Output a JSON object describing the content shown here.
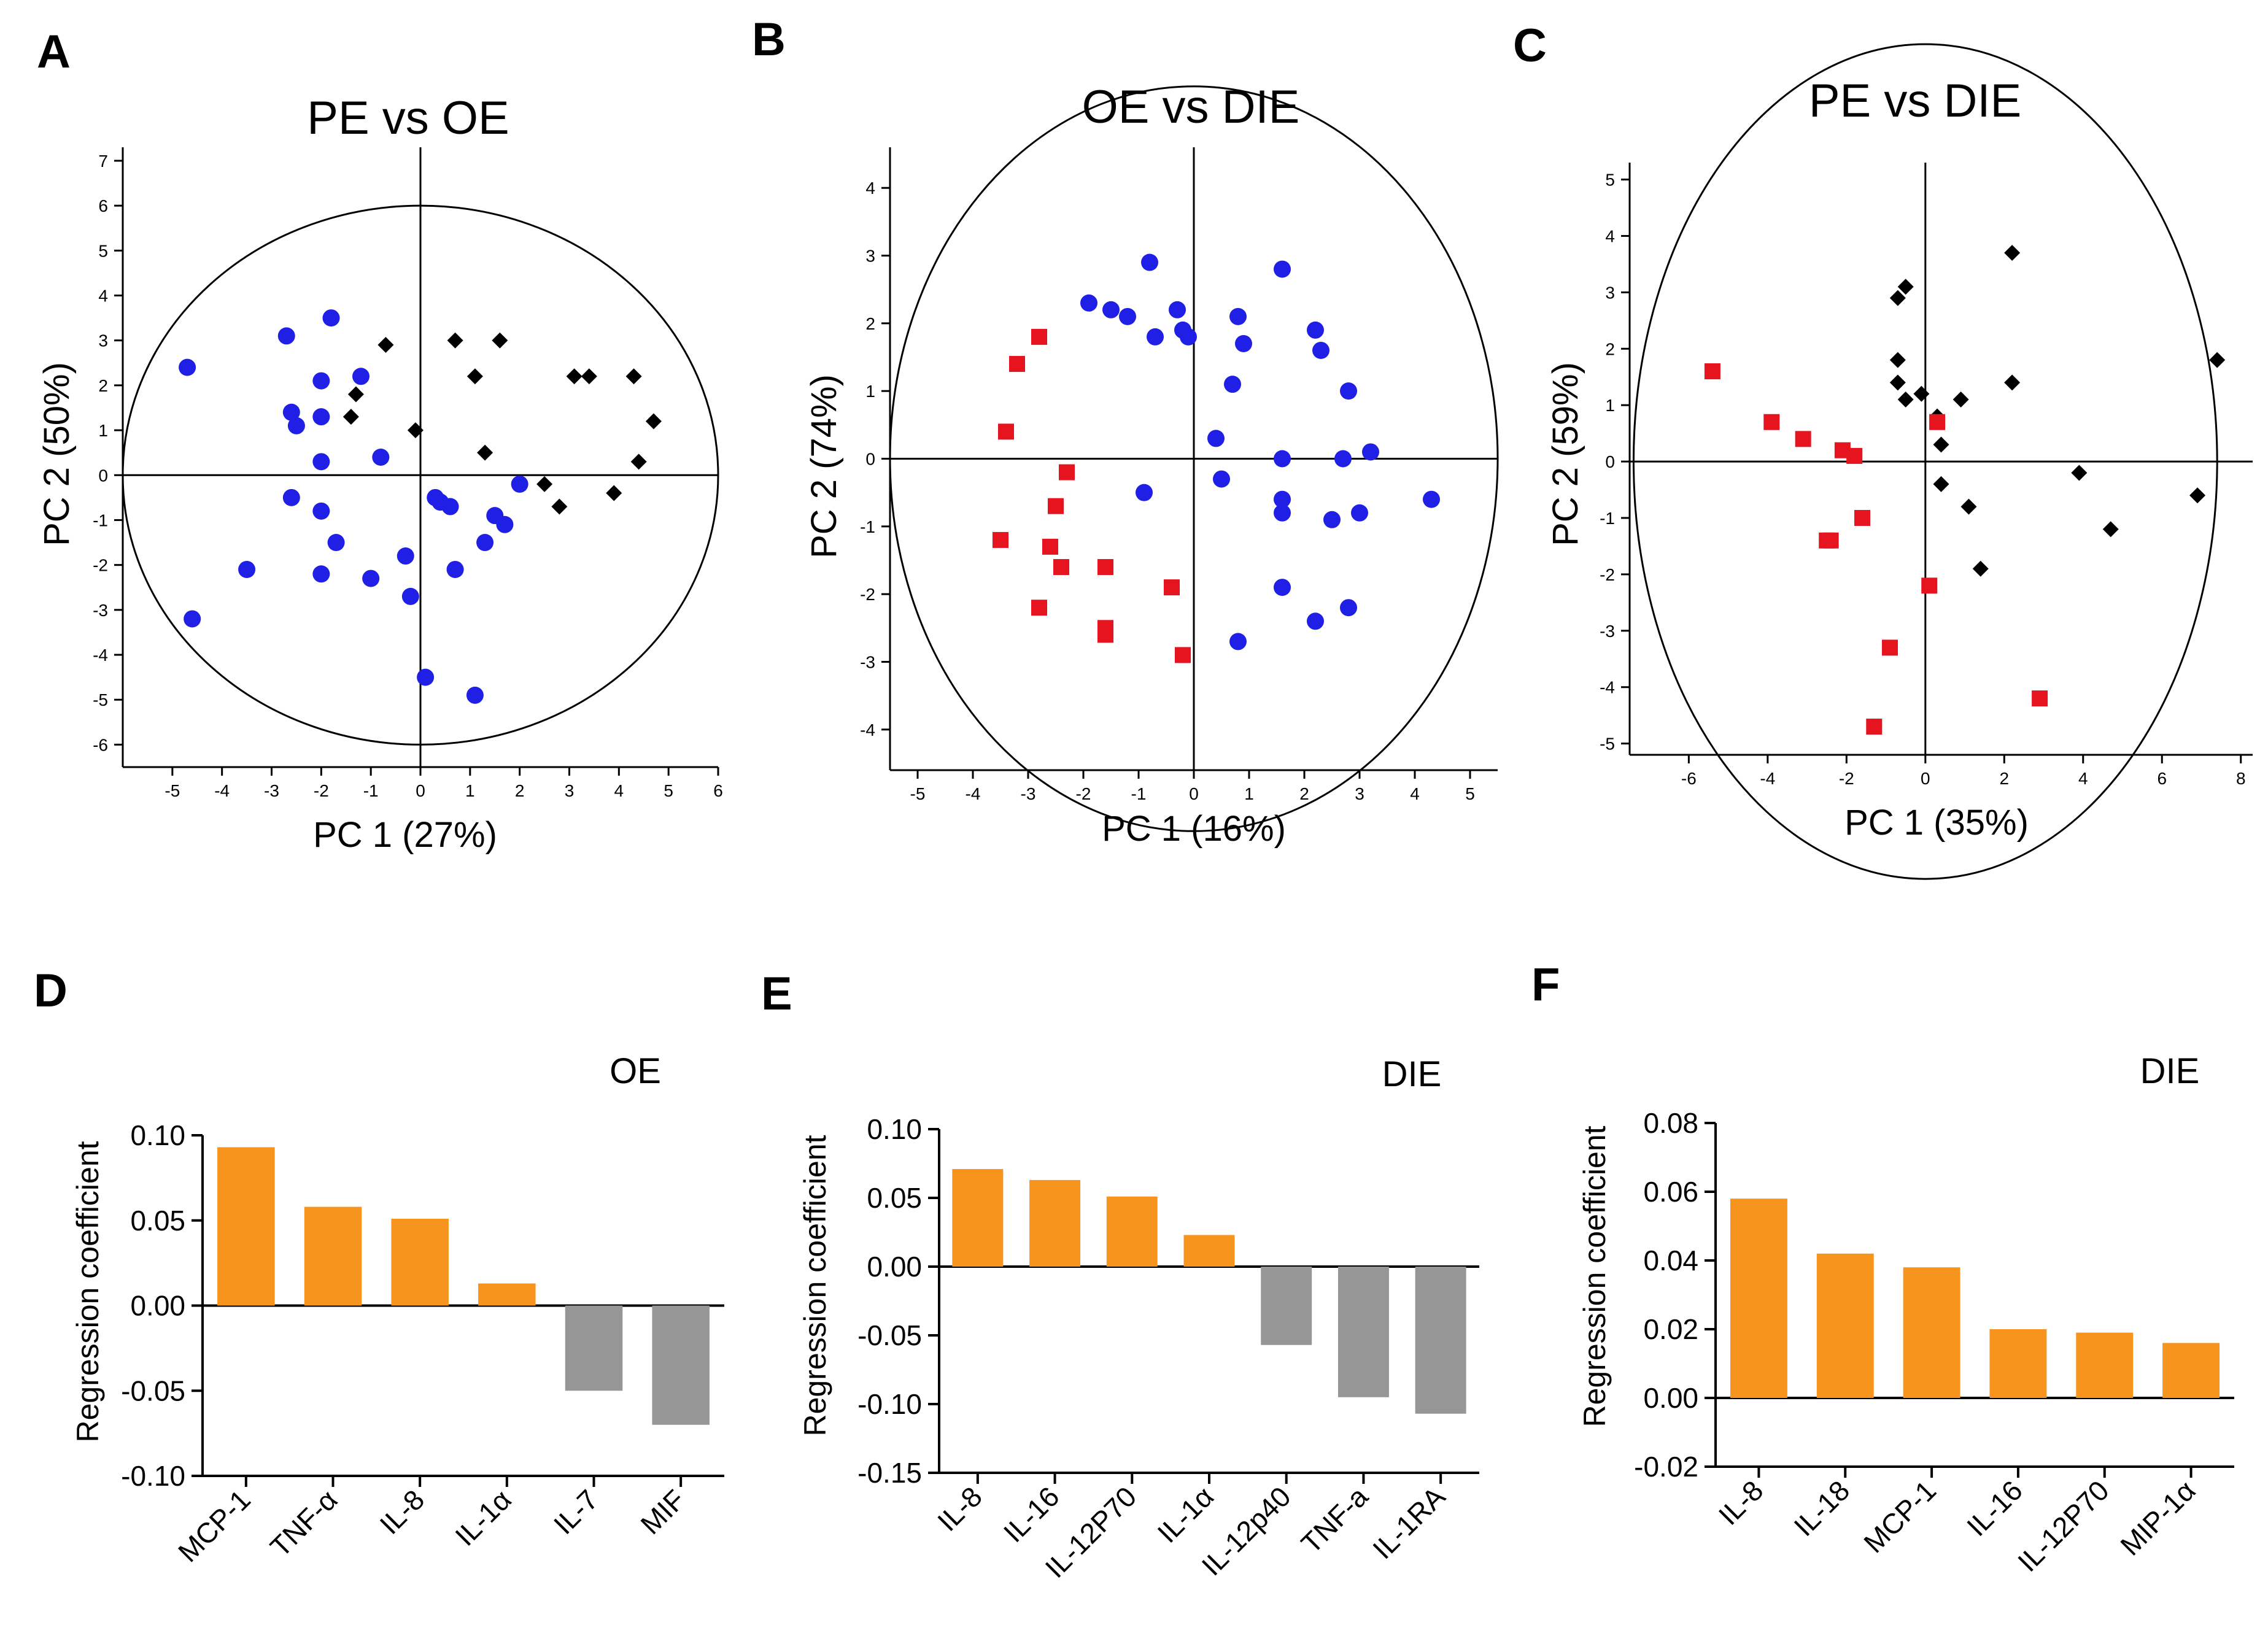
{
  "chart_data": [
    {
      "panel": "A",
      "type": "scatter",
      "title": "PE vs OE",
      "xlabel": "PC 1 (27%)",
      "ylabel": "PC 2 (50%)",
      "xlim": [
        -6,
        6
      ],
      "ylim": [
        -6.5,
        7.3
      ],
      "xticks": [
        -5,
        -4,
        -3,
        -2,
        -1,
        0,
        1,
        2,
        3,
        4,
        5,
        6
      ],
      "yticks": [
        -6,
        -5,
        -4,
        -3,
        -2,
        -1,
        0,
        1,
        2,
        3,
        4,
        5,
        6,
        7
      ],
      "circle": {
        "center": [
          0,
          0
        ],
        "radius": 6
      },
      "series": [
        {
          "marker": "circle",
          "color": "#1f1fe6",
          "points": [
            [
              -4.7,
              2.4
            ],
            [
              -4.6,
              -3.2
            ],
            [
              -3.5,
              -2.1
            ],
            [
              -2.7,
              3.1
            ],
            [
              -2.6,
              1.4
            ],
            [
              -2.5,
              1.1
            ],
            [
              -2.6,
              -0.5
            ],
            [
              -2.0,
              2.1
            ],
            [
              -2.0,
              1.3
            ],
            [
              -2.0,
              0.3
            ],
            [
              -2.0,
              -0.8
            ],
            [
              -2.0,
              -2.2
            ],
            [
              -1.8,
              3.5
            ],
            [
              -1.7,
              -1.5
            ],
            [
              -1.2,
              2.2
            ],
            [
              -1.0,
              -2.3
            ],
            [
              -0.8,
              0.4
            ],
            [
              -0.3,
              -1.8
            ],
            [
              -0.2,
              -2.7
            ],
            [
              0.1,
              -4.5
            ],
            [
              0.3,
              -0.5
            ],
            [
              0.4,
              -0.6
            ],
            [
              0.6,
              -0.7
            ],
            [
              0.7,
              -2.1
            ],
            [
              1.1,
              -4.9
            ],
            [
              1.3,
              -1.5
            ],
            [
              1.5,
              -0.9
            ],
            [
              1.7,
              -1.1
            ],
            [
              2.0,
              -0.2
            ]
          ]
        },
        {
          "marker": "diamond",
          "color": "#000000",
          "points": [
            [
              -1.3,
              1.8
            ],
            [
              -1.4,
              1.3
            ],
            [
              -0.7,
              2.9
            ],
            [
              -0.1,
              1.0
            ],
            [
              0.7,
              3.0
            ],
            [
              1.1,
              2.2
            ],
            [
              1.3,
              0.5
            ],
            [
              1.6,
              3.0
            ],
            [
              2.5,
              -0.2
            ],
            [
              2.8,
              -0.7
            ],
            [
              3.1,
              2.2
            ],
            [
              3.4,
              2.2
            ],
            [
              3.9,
              -0.4
            ],
            [
              4.3,
              2.2
            ],
            [
              4.4,
              0.3
            ],
            [
              4.7,
              1.2
            ]
          ]
        }
      ]
    },
    {
      "panel": "B",
      "type": "scatter",
      "title": "OE vs DIE",
      "xlabel": "PC 1 (16%)",
      "ylabel": "PC 2 (74%)",
      "xlim": [
        -5.5,
        5.5
      ],
      "ylim": [
        -4.6,
        4.6
      ],
      "xticks": [
        -5,
        -4,
        -3,
        -2,
        -1,
        0,
        1,
        2,
        3,
        4,
        5
      ],
      "yticks": [
        -4,
        -3,
        -2,
        -1,
        0,
        1,
        2,
        3,
        4
      ],
      "circle": {
        "center": [
          0,
          0
        ],
        "radius": 5.5
      },
      "series": [
        {
          "marker": "circle",
          "color": "#1f1fe6",
          "points": [
            [
              -1.9,
              2.3
            ],
            [
              -1.5,
              2.2
            ],
            [
              -1.2,
              2.1
            ],
            [
              -0.8,
              2.9
            ],
            [
              -0.7,
              1.8
            ],
            [
              -0.3,
              2.2
            ],
            [
              -0.2,
              1.9
            ],
            [
              -0.1,
              1.8
            ],
            [
              0.8,
              2.1
            ],
            [
              0.9,
              1.7
            ],
            [
              1.6,
              2.8
            ],
            [
              0.7,
              1.1
            ],
            [
              0.4,
              0.3
            ],
            [
              0.5,
              -0.3
            ],
            [
              -0.9,
              -0.5
            ],
            [
              1.6,
              0.0
            ],
            [
              1.6,
              -0.6
            ],
            [
              1.6,
              -0.8
            ],
            [
              2.2,
              1.9
            ],
            [
              2.3,
              1.6
            ],
            [
              2.8,
              1.0
            ],
            [
              3.2,
              0.1
            ],
            [
              2.7,
              0.0
            ],
            [
              4.3,
              -0.6
            ],
            [
              2.5,
              -0.9
            ],
            [
              3.0,
              -0.8
            ],
            [
              1.6,
              -1.9
            ],
            [
              2.2,
              -2.4
            ],
            [
              2.8,
              -2.2
            ],
            [
              0.8,
              -2.7
            ]
          ]
        },
        {
          "marker": "square",
          "color": "#e6141e",
          "points": [
            [
              -2.8,
              1.8
            ],
            [
              -3.2,
              1.4
            ],
            [
              -3.4,
              0.4
            ],
            [
              -2.3,
              -0.2
            ],
            [
              -2.5,
              -0.7
            ],
            [
              -3.5,
              -1.2
            ],
            [
              -2.6,
              -1.3
            ],
            [
              -2.4,
              -1.6
            ],
            [
              -2.8,
              -2.2
            ],
            [
              -1.6,
              -1.6
            ],
            [
              -1.6,
              -2.5
            ],
            [
              -1.6,
              -2.6
            ],
            [
              -0.4,
              -1.9
            ],
            [
              -0.2,
              -2.9
            ]
          ]
        }
      ]
    },
    {
      "panel": "C",
      "type": "scatter",
      "title": "PE vs DIE",
      "xlabel": "PC 1 (35%)",
      "ylabel": "PC 2 (59%)",
      "xlim": [
        -7.5,
        8.3
      ],
      "ylim": [
        -5.2,
        5.3
      ],
      "xticks": [
        -6,
        -4,
        -2,
        0,
        2,
        4,
        6,
        8
      ],
      "yticks": [
        -5,
        -4,
        -3,
        -2,
        -1,
        0,
        1,
        2,
        3,
        4,
        5
      ],
      "circle": {
        "center": [
          0,
          0
        ],
        "radius": 7.4
      },
      "series": [
        {
          "marker": "diamond",
          "color": "#000000",
          "points": [
            [
              -0.7,
              2.9
            ],
            [
              -0.5,
              3.1
            ],
            [
              -0.7,
              1.8
            ],
            [
              -0.7,
              1.4
            ],
            [
              -0.5,
              1.1
            ],
            [
              -0.1,
              1.2
            ],
            [
              0.3,
              0.8
            ],
            [
              0.4,
              0.3
            ],
            [
              0.9,
              1.1
            ],
            [
              0.4,
              -0.4
            ],
            [
              1.1,
              -0.8
            ],
            [
              1.4,
              -1.9
            ],
            [
              2.2,
              3.7
            ],
            [
              2.2,
              1.4
            ],
            [
              3.9,
              -0.2
            ],
            [
              4.7,
              -1.2
            ],
            [
              6.9,
              -0.6
            ],
            [
              7.4,
              1.8
            ]
          ]
        },
        {
          "marker": "square",
          "color": "#e6141e",
          "points": [
            [
              -5.4,
              1.6
            ],
            [
              -3.9,
              0.7
            ],
            [
              -3.1,
              0.4
            ],
            [
              -2.1,
              0.2
            ],
            [
              -1.8,
              0.1
            ],
            [
              -1.6,
              -1.0
            ],
            [
              -2.5,
              -1.4
            ],
            [
              -2.4,
              -1.4
            ],
            [
              0.3,
              0.7
            ],
            [
              0.1,
              -2.2
            ],
            [
              -0.9,
              -3.3
            ],
            [
              -1.3,
              -4.7
            ],
            [
              2.9,
              -4.2
            ]
          ]
        }
      ]
    },
    {
      "panel": "D",
      "type": "bar",
      "group_label": "OE",
      "xlabel": "",
      "ylabel": "Regression coefficient",
      "ylim": [
        -0.1,
        0.1
      ],
      "yticks": [
        "-0.10",
        "-0.05",
        "0.00",
        "0.05",
        "0.10"
      ],
      "categories": [
        "MCP-1",
        "TNF-α",
        "IL-8",
        "IL-1α",
        "IL-7",
        "MIF"
      ],
      "values": [
        0.093,
        0.058,
        0.051,
        0.013,
        -0.05,
        -0.07
      ],
      "colors": {
        "positive": "#f7941d",
        "negative": "#969696"
      }
    },
    {
      "panel": "E",
      "type": "bar",
      "group_label": "DIE",
      "xlabel": "",
      "ylabel": "Regression coefficient",
      "ylim": [
        -0.15,
        0.1
      ],
      "yticks": [
        "-0.15",
        "-0.10",
        "-0.05",
        "0.00",
        "0.05",
        "0.10"
      ],
      "categories": [
        "IL-8",
        "IL-16",
        "IL-12P70",
        "IL-1α",
        "IL-12p40",
        "TNF-a",
        "IL-1RA"
      ],
      "values": [
        0.071,
        0.063,
        0.051,
        0.023,
        -0.057,
        -0.095,
        -0.107
      ],
      "colors": {
        "positive": "#f7941d",
        "negative": "#969696"
      }
    },
    {
      "panel": "F",
      "type": "bar",
      "group_label": "DIE",
      "xlabel": "",
      "ylabel": "Regression coefficient",
      "ylim": [
        -0.02,
        0.08
      ],
      "yticks": [
        "-0.02",
        "0.00",
        "0.02",
        "0.04",
        "0.06",
        "0.08"
      ],
      "categories": [
        "IL-8",
        "IL-18",
        "MCP-1",
        "IL-16",
        "IL-12P70",
        "MIP-1α"
      ],
      "values": [
        0.058,
        0.042,
        0.038,
        0.02,
        0.019,
        0.016
      ],
      "colors": {
        "positive": "#f7941d",
        "negative": "#969696"
      }
    }
  ]
}
